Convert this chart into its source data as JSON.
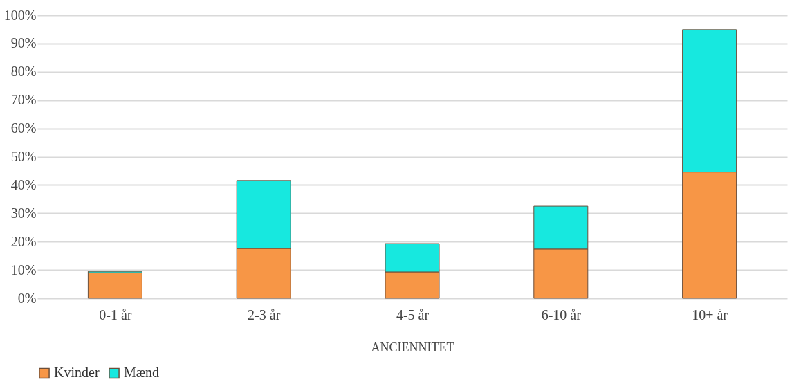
{
  "chart_data": {
    "type": "bar",
    "stacked": true,
    "xlabel": "ANCIENNITET",
    "categories": [
      "0-1 år",
      "2-3 år",
      "4-5 år",
      "6-10 år",
      "10+ år"
    ],
    "series": [
      {
        "name": "Kvinder",
        "color": "#f79646",
        "values": [
          9,
          17.6,
          9.3,
          17.4,
          44.6
        ]
      },
      {
        "name": "Mænd",
        "color": "#17e8df",
        "values": [
          0.5,
          24,
          10,
          15.1,
          50.3
        ]
      }
    ],
    "ylim": [
      0,
      100
    ],
    "yticks": [
      {
        "value": 0,
        "label": "0%"
      },
      {
        "value": 10,
        "label": "10%"
      },
      {
        "value": 20,
        "label": "20%"
      },
      {
        "value": 30,
        "label": "30%"
      },
      {
        "value": 40,
        "label": "40%"
      },
      {
        "value": 50,
        "label": "50%"
      },
      {
        "value": 60,
        "label": "60%"
      },
      {
        "value": 70,
        "label": "70%"
      },
      {
        "value": 80,
        "label": "80%"
      },
      {
        "value": 90,
        "label": "90%"
      },
      {
        "value": 100,
        "label": "100%"
      }
    ],
    "grid": "y",
    "legend": "bottom"
  }
}
